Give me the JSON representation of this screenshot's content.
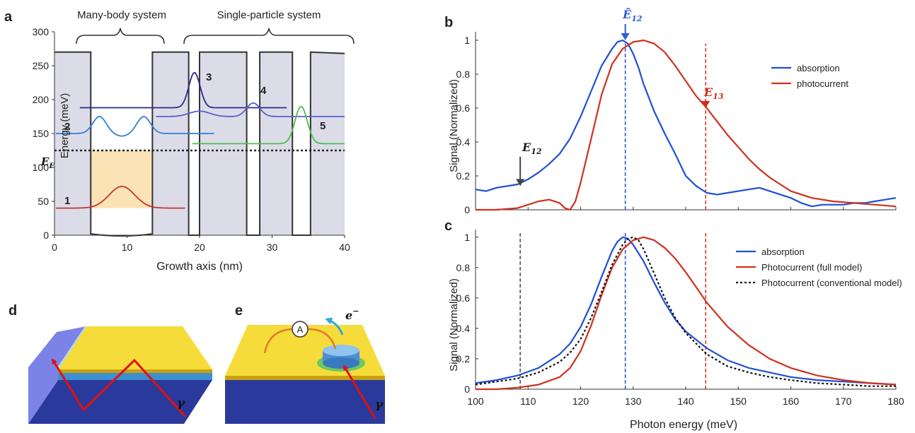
{
  "panels": {
    "a": {
      "letter": "a",
      "ylabel": "Energy (meV)",
      "xlabel": "Growth axis (nm)",
      "yticks": [
        0,
        50,
        100,
        150,
        200,
        250,
        300
      ],
      "xticks": [
        0,
        10,
        20,
        30,
        40
      ],
      "xlim": [
        0,
        40
      ],
      "ylim": [
        0,
        300
      ],
      "group_labels": {
        "many_body": "Many-body system",
        "single_particle": "Single-particle system"
      },
      "fermi_label": "E_F",
      "fermi_sub": "F",
      "fermi_main": "E",
      "fermi_level": 125,
      "state_labels": [
        "1",
        "2",
        "3",
        "4",
        "5"
      ],
      "barrier_height": 270,
      "wells_nm": [
        [
          5,
          13.5
        ],
        [
          18.5,
          20
        ],
        [
          26.5,
          28.3
        ],
        [
          32.8,
          35.3
        ]
      ],
      "colors": {
        "barrier": "#dcdce8",
        "state1": "#c83232",
        "state2": "#2f7fd8",
        "state3": "#2b2a8c",
        "state4": "#5560d0",
        "state5": "#4cbf4c",
        "fill": "#fbe3b6"
      }
    },
    "b": {
      "letter": "b",
      "ylabel": "Signal (Normalized)",
      "yticks": [
        0,
        0.2,
        0.4,
        0.6,
        0.8,
        1
      ],
      "annot_E12_tilde": "Ẽ",
      "annot_E12_tilde_sub": "12",
      "annot_E13": "E",
      "annot_E13_sub": "13",
      "annot_E12": "E",
      "annot_E12_sub": "12",
      "E12_tilde_x": 128.5,
      "E13_x": 143.8,
      "E12_x": 108.5
    },
    "c": {
      "letter": "c",
      "ylabel": "Signal (Normalized)",
      "xlabel": "Photon energy (meV)",
      "yticks": [
        0,
        0.2,
        0.4,
        0.6,
        0.8,
        1
      ],
      "xticks": [
        100,
        110,
        120,
        130,
        140,
        150,
        160,
        170,
        180
      ]
    },
    "d": {
      "letter": "d",
      "gamma": "γ"
    },
    "e": {
      "letter": "e",
      "gamma": "γ",
      "ammeter": "A",
      "electron": "e",
      "electron_sup": "−"
    }
  },
  "chart_data": [
    {
      "type": "line",
      "panel": "b",
      "xlim": [
        100,
        180
      ],
      "ylim": [
        0,
        1.05
      ],
      "legend": "top-right",
      "series": [
        {
          "name": "absorption",
          "color": "#1f4fd6",
          "x": [
            100,
            102,
            104,
            106,
            108,
            110,
            112,
            114,
            116,
            118,
            120,
            122,
            124,
            126,
            127,
            128,
            129,
            130,
            131,
            132,
            134,
            136,
            138,
            140,
            142,
            144,
            146,
            148,
            150,
            152,
            154,
            156,
            158,
            160,
            162,
            164,
            166,
            168,
            170,
            172,
            174,
            176,
            178,
            180
          ],
          "y": [
            0.12,
            0.11,
            0.13,
            0.14,
            0.15,
            0.18,
            0.22,
            0.27,
            0.33,
            0.42,
            0.55,
            0.7,
            0.85,
            0.95,
            0.99,
            1.0,
            0.98,
            0.92,
            0.84,
            0.74,
            0.58,
            0.45,
            0.33,
            0.2,
            0.14,
            0.1,
            0.09,
            0.1,
            0.11,
            0.12,
            0.13,
            0.11,
            0.09,
            0.07,
            0.04,
            0.02,
            0.03,
            0.03,
            0.03,
            0.04,
            0.04,
            0.05,
            0.06,
            0.07
          ]
        },
        {
          "name": "photocurrent",
          "color": "#d0301e",
          "x": [
            100,
            104,
            108,
            110,
            112,
            114,
            116,
            117,
            118,
            119,
            120,
            122,
            124,
            126,
            128,
            130,
            132,
            134,
            136,
            138,
            140,
            142,
            144,
            146,
            148,
            150,
            152,
            154,
            156,
            158,
            160,
            164,
            168,
            172,
            176,
            180
          ],
          "y": [
            0.0,
            0.0,
            0.01,
            0.03,
            0.05,
            0.06,
            0.04,
            0.01,
            0.0,
            0.05,
            0.16,
            0.42,
            0.68,
            0.86,
            0.95,
            0.99,
            1.0,
            0.98,
            0.93,
            0.85,
            0.76,
            0.67,
            0.6,
            0.52,
            0.44,
            0.37,
            0.3,
            0.24,
            0.19,
            0.15,
            0.11,
            0.07,
            0.05,
            0.04,
            0.03,
            0.02
          ]
        }
      ]
    },
    {
      "type": "line",
      "panel": "c",
      "xlabel": "Photon energy (meV)",
      "xlim": [
        100,
        180
      ],
      "ylim": [
        0,
        1.05
      ],
      "legend": "top-right",
      "series": [
        {
          "name": "absorption",
          "color": "#1f4fd6",
          "dash": "",
          "x": [
            100,
            104,
            108,
            112,
            116,
            118,
            120,
            122,
            124,
            126,
            127,
            128,
            129,
            130,
            132,
            134,
            136,
            138,
            140,
            144,
            148,
            152,
            156,
            160,
            165,
            170,
            175,
            180
          ],
          "y": [
            0.04,
            0.06,
            0.09,
            0.14,
            0.23,
            0.3,
            0.41,
            0.56,
            0.74,
            0.91,
            0.97,
            1.0,
            0.99,
            0.95,
            0.84,
            0.7,
            0.57,
            0.46,
            0.38,
            0.27,
            0.19,
            0.14,
            0.11,
            0.08,
            0.06,
            0.05,
            0.04,
            0.03
          ]
        },
        {
          "name": "Photocurrent (full model)",
          "color": "#d0301e",
          "dash": "",
          "x": [
            100,
            104,
            108,
            112,
            116,
            118,
            120,
            122,
            124,
            126,
            128,
            130,
            132,
            134,
            136,
            138,
            140,
            142,
            144,
            148,
            152,
            156,
            160,
            165,
            170,
            175,
            180
          ],
          "y": [
            0.0,
            0.0,
            0.01,
            0.03,
            0.08,
            0.14,
            0.25,
            0.42,
            0.62,
            0.8,
            0.92,
            0.98,
            1.0,
            0.98,
            0.93,
            0.86,
            0.77,
            0.67,
            0.57,
            0.41,
            0.29,
            0.2,
            0.14,
            0.09,
            0.06,
            0.04,
            0.03
          ]
        },
        {
          "name": "Photocurrent (conventional model)",
          "color": "#111111",
          "dash": "3,3",
          "x": [
            100,
            104,
            108,
            112,
            116,
            118,
            120,
            122,
            124,
            126,
            128,
            129,
            130,
            131,
            132,
            134,
            136,
            138,
            140,
            144,
            148,
            152,
            156,
            160,
            165,
            170,
            175,
            180
          ],
          "y": [
            0.03,
            0.05,
            0.07,
            0.11,
            0.18,
            0.24,
            0.33,
            0.47,
            0.64,
            0.82,
            0.95,
            0.99,
            1.0,
            0.98,
            0.92,
            0.76,
            0.6,
            0.47,
            0.37,
            0.23,
            0.15,
            0.11,
            0.08,
            0.06,
            0.04,
            0.03,
            0.02,
            0.02
          ]
        }
      ],
      "vlines": [
        {
          "x": 108.5,
          "color": "#444444"
        },
        {
          "x": 128.5,
          "color": "#1f4fd6"
        },
        {
          "x": 143.8,
          "color": "#d0301e"
        }
      ]
    }
  ]
}
